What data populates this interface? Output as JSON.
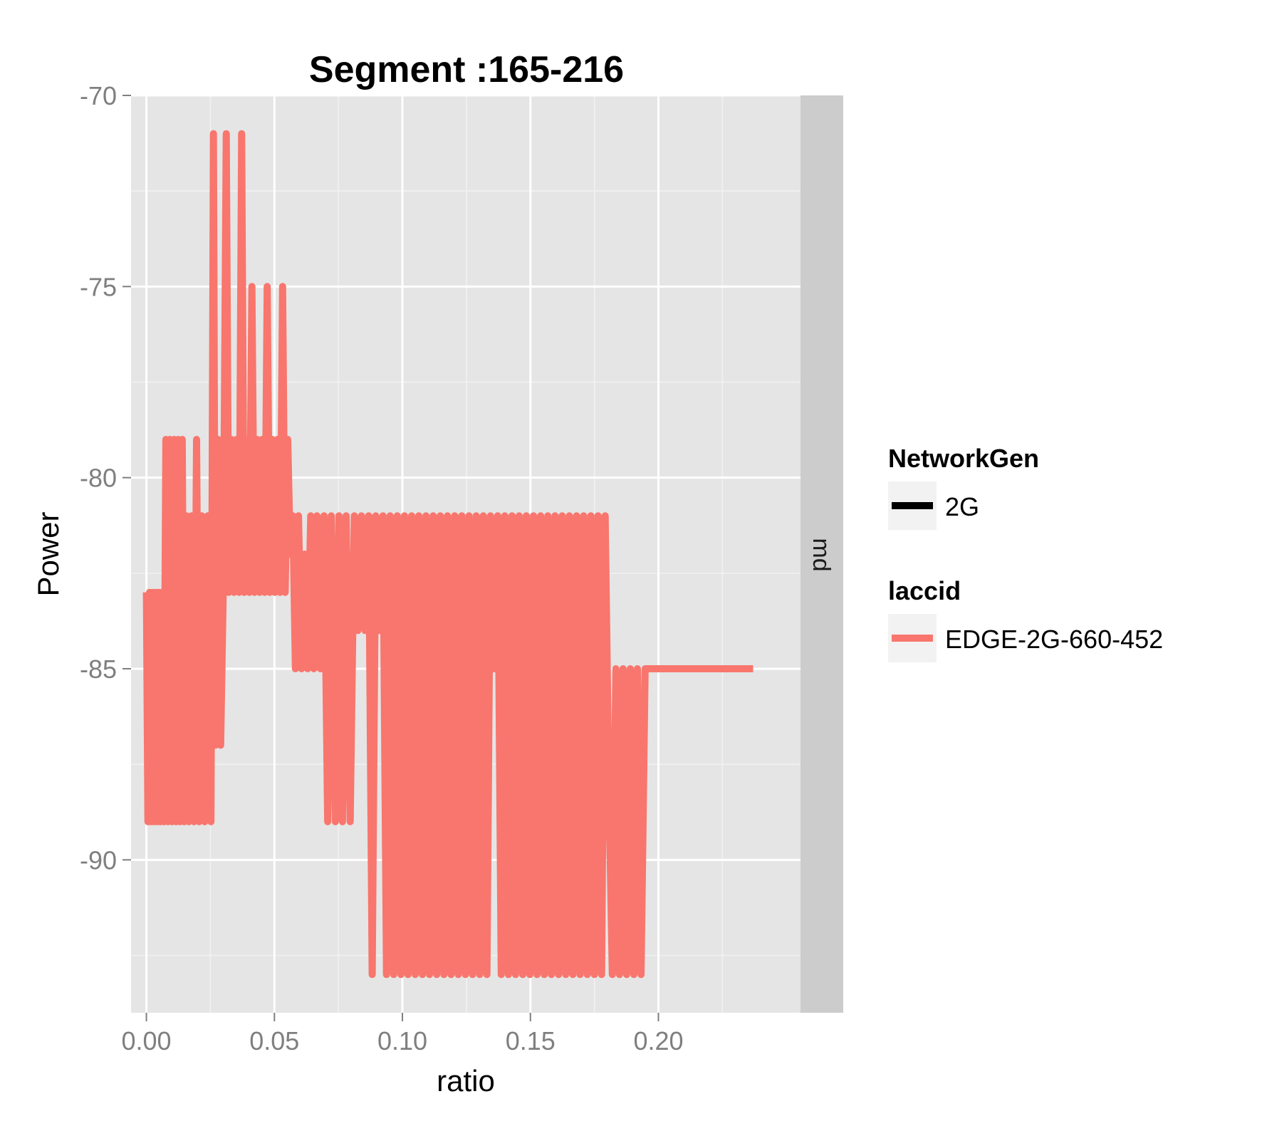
{
  "chart_data": {
    "type": "line",
    "title": "Segment :165-216",
    "xlabel": "ratio",
    "ylabel": "Power",
    "xlim": [
      -0.006,
      0.2555
    ],
    "ylim": [
      -94,
      -70
    ],
    "x_ticks": [
      "0.00",
      "0.05",
      "0.10",
      "0.15",
      "0.20"
    ],
    "x_tick_values": [
      0,
      0.05,
      0.1,
      0.15,
      0.2
    ],
    "y_ticks": [
      "-70",
      "-75",
      "-80",
      "-85",
      "-90"
    ],
    "y_tick_values": [
      -70,
      -75,
      -80,
      -85,
      -90
    ],
    "grid": true,
    "facet_label": "md",
    "legend_position": "right",
    "legends": [
      {
        "title": "NetworkGen",
        "items": [
          {
            "label": "2G",
            "color": "#000000"
          }
        ]
      },
      {
        "title": "laccid",
        "items": [
          {
            "label": "EDGE-2G-660-452",
            "color": "#F8766D"
          }
        ]
      }
    ],
    "series": [
      {
        "name": "EDGE-2G-660-452",
        "color": "#F8766D",
        "points": [
          [
            0.0,
            -83
          ],
          [
            0.0006,
            -89
          ],
          [
            0.0012,
            -83
          ],
          [
            0.0018,
            -89
          ],
          [
            0.0024,
            -83
          ],
          [
            0.003,
            -89
          ],
          [
            0.0036,
            -83
          ],
          [
            0.0042,
            -89
          ],
          [
            0.0048,
            -83
          ],
          [
            0.0054,
            -89
          ],
          [
            0.006,
            -83
          ],
          [
            0.0068,
            -89
          ],
          [
            0.0076,
            -79
          ],
          [
            0.0084,
            -89
          ],
          [
            0.0092,
            -79
          ],
          [
            0.01,
            -89
          ],
          [
            0.0108,
            -79
          ],
          [
            0.0116,
            -89
          ],
          [
            0.0124,
            -79
          ],
          [
            0.0132,
            -89
          ],
          [
            0.014,
            -79
          ],
          [
            0.0148,
            -89
          ],
          [
            0.0156,
            -81
          ],
          [
            0.0166,
            -89
          ],
          [
            0.0176,
            -81
          ],
          [
            0.0186,
            -89
          ],
          [
            0.0196,
            -79
          ],
          [
            0.0206,
            -89
          ],
          [
            0.0216,
            -81
          ],
          [
            0.0228,
            -89
          ],
          [
            0.024,
            -81
          ],
          [
            0.0252,
            -89
          ],
          [
            0.0262,
            -71
          ],
          [
            0.027,
            -87
          ],
          [
            0.028,
            -79
          ],
          [
            0.029,
            -87
          ],
          [
            0.03,
            -83
          ],
          [
            0.0312,
            -71
          ],
          [
            0.0322,
            -83
          ],
          [
            0.0332,
            -79
          ],
          [
            0.0342,
            -83
          ],
          [
            0.0352,
            -79
          ],
          [
            0.0362,
            -83
          ],
          [
            0.0372,
            -71
          ],
          [
            0.0382,
            -83
          ],
          [
            0.0392,
            -79
          ],
          [
            0.0402,
            -83
          ],
          [
            0.0412,
            -75
          ],
          [
            0.0422,
            -83
          ],
          [
            0.0432,
            -79
          ],
          [
            0.0442,
            -83
          ],
          [
            0.0452,
            -79
          ],
          [
            0.0462,
            -83
          ],
          [
            0.0472,
            -75
          ],
          [
            0.0482,
            -83
          ],
          [
            0.0492,
            -79
          ],
          [
            0.0502,
            -83
          ],
          [
            0.0512,
            -79
          ],
          [
            0.0522,
            -83
          ],
          [
            0.0532,
            -75
          ],
          [
            0.0542,
            -83
          ],
          [
            0.0552,
            -79
          ],
          [
            0.0562,
            -82
          ],
          [
            0.0572,
            -81
          ],
          [
            0.0582,
            -85
          ],
          [
            0.0594,
            -81
          ],
          [
            0.0606,
            -85
          ],
          [
            0.0618,
            -82
          ],
          [
            0.063,
            -85
          ],
          [
            0.0642,
            -81
          ],
          [
            0.0654,
            -85
          ],
          [
            0.0666,
            -81
          ],
          [
            0.068,
            -85
          ],
          [
            0.0694,
            -81
          ],
          [
            0.0708,
            -89
          ],
          [
            0.0722,
            -81
          ],
          [
            0.0738,
            -89
          ],
          [
            0.0752,
            -81
          ],
          [
            0.0766,
            -89
          ],
          [
            0.078,
            -81
          ],
          [
            0.0796,
            -89
          ],
          [
            0.0812,
            -81
          ],
          [
            0.0826,
            -84
          ],
          [
            0.084,
            -81
          ],
          [
            0.0854,
            -84
          ],
          [
            0.0868,
            -81
          ],
          [
            0.0882,
            -93
          ],
          [
            0.0896,
            -81
          ],
          [
            0.091,
            -84
          ],
          [
            0.0924,
            -81
          ],
          [
            0.0938,
            -93
          ],
          [
            0.0952,
            -81
          ],
          [
            0.0966,
            -93
          ],
          [
            0.098,
            -81
          ],
          [
            0.0994,
            -93
          ],
          [
            0.1008,
            -81
          ],
          [
            0.1022,
            -93
          ],
          [
            0.1036,
            -81
          ],
          [
            0.105,
            -93
          ],
          [
            0.1064,
            -81
          ],
          [
            0.1078,
            -93
          ],
          [
            0.1092,
            -81
          ],
          [
            0.1106,
            -93
          ],
          [
            0.112,
            -81
          ],
          [
            0.1134,
            -93
          ],
          [
            0.1148,
            -81
          ],
          [
            0.1162,
            -93
          ],
          [
            0.1176,
            -81
          ],
          [
            0.119,
            -93
          ],
          [
            0.1204,
            -81
          ],
          [
            0.1218,
            -93
          ],
          [
            0.1232,
            -81
          ],
          [
            0.1246,
            -93
          ],
          [
            0.126,
            -81
          ],
          [
            0.1274,
            -93
          ],
          [
            0.1288,
            -81
          ],
          [
            0.1302,
            -93
          ],
          [
            0.1316,
            -81
          ],
          [
            0.133,
            -93
          ],
          [
            0.1344,
            -81
          ],
          [
            0.1358,
            -85
          ],
          [
            0.1372,
            -81
          ],
          [
            0.1386,
            -93
          ],
          [
            0.14,
            -81
          ],
          [
            0.1414,
            -93
          ],
          [
            0.1428,
            -81
          ],
          [
            0.1442,
            -93
          ],
          [
            0.1456,
            -81
          ],
          [
            0.147,
            -93
          ],
          [
            0.1484,
            -81
          ],
          [
            0.1498,
            -93
          ],
          [
            0.1512,
            -81
          ],
          [
            0.1526,
            -93
          ],
          [
            0.154,
            -81
          ],
          [
            0.1554,
            -93
          ],
          [
            0.1568,
            -81
          ],
          [
            0.1582,
            -93
          ],
          [
            0.1596,
            -81
          ],
          [
            0.161,
            -93
          ],
          [
            0.1624,
            -81
          ],
          [
            0.1638,
            -93
          ],
          [
            0.1652,
            -81
          ],
          [
            0.1666,
            -93
          ],
          [
            0.168,
            -81
          ],
          [
            0.1694,
            -93
          ],
          [
            0.1708,
            -81
          ],
          [
            0.1722,
            -93
          ],
          [
            0.1736,
            -81
          ],
          [
            0.175,
            -93
          ],
          [
            0.1764,
            -81
          ],
          [
            0.1778,
            -93
          ],
          [
            0.1792,
            -81
          ],
          [
            0.1806,
            -88
          ],
          [
            0.182,
            -93
          ],
          [
            0.1834,
            -85
          ],
          [
            0.1848,
            -93
          ],
          [
            0.1862,
            -85
          ],
          [
            0.1876,
            -93
          ],
          [
            0.189,
            -85
          ],
          [
            0.1904,
            -93
          ],
          [
            0.1918,
            -85
          ],
          [
            0.1932,
            -93
          ],
          [
            0.1948,
            -85
          ],
          [
            0.197,
            -85
          ],
          [
            0.2,
            -85
          ],
          [
            0.21,
            -85
          ],
          [
            0.22,
            -85
          ],
          [
            0.237,
            -85
          ]
        ]
      }
    ]
  }
}
